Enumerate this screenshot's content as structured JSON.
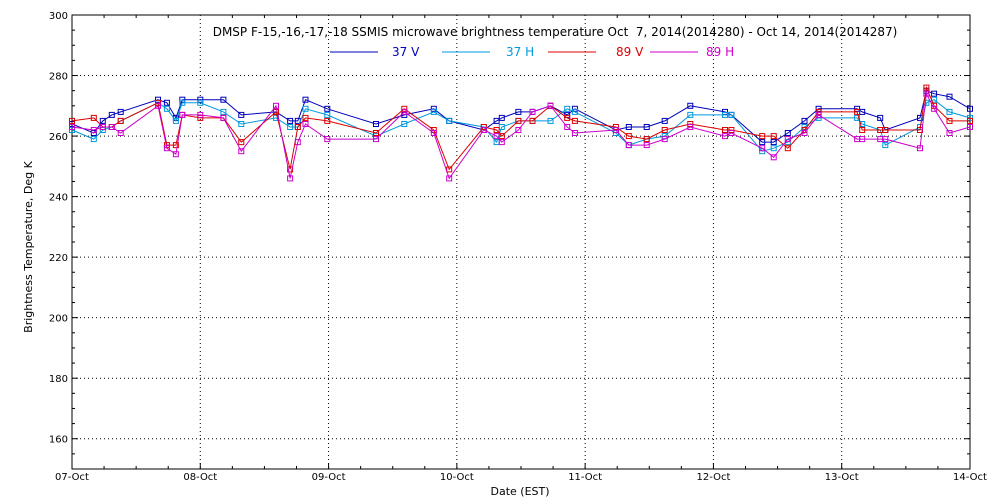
{
  "chart_data": {
    "type": "line",
    "title": "DMSP F-15,-16,-17,-18 SSMIS microwave brightness temperature Oct  7, 2014(2014280) - Oct 14, 2014(2014287)",
    "xlabel": "Date (EST)",
    "ylabel": "Brightness Temperature, Deg K",
    "xlim": [
      0,
      7
    ],
    "ylim": [
      150,
      300
    ],
    "x_ticks": [
      0,
      1,
      2,
      3,
      4,
      5,
      6,
      7
    ],
    "x_tick_labels": [
      "07-Oct",
      "08-Oct",
      "09-Oct",
      "10-Oct",
      "11-Oct",
      "12-Oct",
      "13-Oct",
      "14-Oct"
    ],
    "y_ticks": [
      160,
      180,
      200,
      220,
      240,
      260,
      280,
      300
    ],
    "y_tick_labels": [
      "160",
      "180",
      "200",
      "220",
      "240",
      "260",
      "280",
      "300"
    ],
    "grid": true,
    "marker": "square",
    "series": [
      {
        "name": "37 V",
        "color": "#0000bb",
        "x": [
          0.0,
          0.17,
          0.24,
          0.31,
          0.38,
          0.67,
          0.74,
          0.81,
          0.86,
          1.0,
          1.18,
          1.32,
          1.59,
          1.7,
          1.76,
          1.82,
          1.99,
          2.37,
          2.59,
          2.82,
          2.94,
          3.21,
          3.31,
          3.35,
          3.48,
          3.59,
          3.73,
          3.86,
          3.92,
          4.24,
          4.34,
          4.48,
          4.62,
          4.82,
          5.09,
          5.14,
          5.38,
          5.47,
          5.58,
          5.71,
          5.82,
          6.12,
          6.16,
          6.3,
          6.34,
          6.61,
          6.66,
          6.72,
          6.84,
          7.0
        ],
        "y": [
          264,
          261,
          265,
          267,
          268,
          272,
          271,
          266,
          272,
          272,
          272,
          267,
          268,
          265,
          265,
          272,
          269,
          264,
          267,
          269,
          265,
          262,
          265,
          266,
          268,
          268,
          270,
          267,
          269,
          262,
          263,
          263,
          265,
          270,
          268,
          267,
          258,
          258,
          261,
          265,
          269,
          269,
          268,
          266,
          262,
          266,
          275,
          274,
          273,
          269
        ]
      },
      {
        "name": "37 H",
        "color": "#0099dd",
        "x": [
          0.0,
          0.17,
          0.24,
          0.31,
          0.38,
          0.67,
          0.74,
          0.81,
          0.86,
          1.0,
          1.18,
          1.32,
          1.59,
          1.7,
          1.76,
          1.82,
          1.99,
          2.37,
          2.59,
          2.82,
          2.94,
          3.21,
          3.31,
          3.35,
          3.48,
          3.59,
          3.73,
          3.86,
          3.92,
          4.24,
          4.34,
          4.48,
          4.62,
          4.82,
          5.09,
          5.14,
          5.38,
          5.47,
          5.58,
          5.71,
          5.82,
          6.12,
          6.16,
          6.3,
          6.34,
          6.61,
          6.66,
          6.72,
          6.84,
          7.0
        ],
        "y": [
          262,
          259,
          262,
          263,
          265,
          271,
          269,
          265,
          271,
          271,
          268,
          264,
          266,
          263,
          263,
          269,
          267,
          260,
          264,
          268,
          265,
          263,
          258,
          263,
          265,
          265,
          265,
          269,
          268,
          261,
          257,
          259,
          260,
          267,
          267,
          267,
          255,
          256,
          258,
          263,
          266,
          266,
          264,
          262,
          257,
          263,
          271,
          272,
          268,
          266
        ]
      },
      {
        "name": "89 V",
        "color": "#dd0000",
        "x": [
          0.0,
          0.17,
          0.24,
          0.31,
          0.38,
          0.67,
          0.74,
          0.81,
          0.86,
          1.0,
          1.18,
          1.32,
          1.59,
          1.7,
          1.76,
          1.82,
          1.99,
          2.37,
          2.59,
          2.82,
          2.94,
          3.21,
          3.31,
          3.35,
          3.48,
          3.59,
          3.73,
          3.86,
          3.92,
          4.24,
          4.34,
          4.48,
          4.62,
          4.82,
          5.09,
          5.14,
          5.38,
          5.47,
          5.58,
          5.71,
          5.82,
          6.12,
          6.16,
          6.3,
          6.34,
          6.61,
          6.66,
          6.72,
          6.84,
          7.0
        ],
        "y": [
          265,
          266,
          263,
          263,
          265,
          271,
          257,
          257,
          267,
          266,
          266,
          258,
          268,
          249,
          263,
          266,
          265,
          261,
          269,
          262,
          249,
          263,
          262,
          260,
          265,
          265,
          270,
          266,
          265,
          263,
          260,
          259,
          262,
          264,
          262,
          262,
          260,
          260,
          256,
          262,
          268,
          268,
          262,
          262,
          262,
          262,
          276,
          270,
          265,
          265
        ]
      },
      {
        "name": "89 H",
        "color": "#cc00cc",
        "x": [
          0.0,
          0.17,
          0.24,
          0.31,
          0.38,
          0.67,
          0.74,
          0.81,
          0.86,
          1.0,
          1.18,
          1.32,
          1.59,
          1.7,
          1.76,
          1.82,
          1.99,
          2.37,
          2.59,
          2.82,
          2.94,
          3.21,
          3.31,
          3.35,
          3.48,
          3.59,
          3.73,
          3.86,
          3.92,
          4.24,
          4.34,
          4.48,
          4.62,
          4.82,
          5.09,
          5.14,
          5.38,
          5.47,
          5.58,
          5.71,
          5.82,
          6.12,
          6.16,
          6.3,
          6.34,
          6.61,
          6.66,
          6.72,
          6.84,
          7.0
        ],
        "y": [
          263,
          262,
          263,
          263,
          261,
          270,
          256,
          254,
          267,
          267,
          266,
          255,
          270,
          246,
          258,
          264,
          259,
          259,
          268,
          261,
          246,
          262,
          260,
          258,
          262,
          268,
          270,
          263,
          261,
          262,
          257,
          257,
          259,
          263,
          260,
          261,
          256,
          253,
          259,
          261,
          267,
          259,
          259,
          259,
          259,
          256,
          274,
          269,
          261,
          263
        ]
      }
    ]
  }
}
